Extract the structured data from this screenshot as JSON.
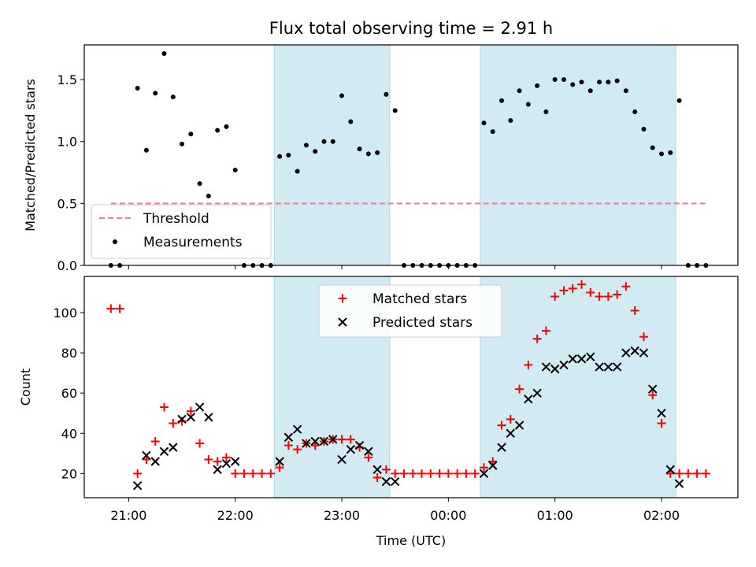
{
  "title": "Flux total observing time = 2.91 h",
  "shading_color": "#add8e6",
  "chart_data": [
    {
      "type": "scatter",
      "panel": "top",
      "ylabel": "Matched/Predicted stars",
      "ylim": [
        0,
        1.78
      ],
      "yticks": [
        0.0,
        0.5,
        1.0,
        1.5
      ],
      "ytick_labels": [
        "0.0",
        "0.5",
        "1.0",
        "1.5"
      ],
      "threshold": {
        "label": "Threshold",
        "value": 0.5,
        "x_range": [
          "20:50",
          "02:25"
        ],
        "color": "#f08080",
        "style": "dashed"
      },
      "legend": {
        "position": "lower-left",
        "entries": [
          "Threshold",
          "Measurements"
        ]
      },
      "series": [
        {
          "name": "Measurements",
          "marker": "dot",
          "color": "#000000",
          "x": [
            "20:50",
            "20:55",
            "21:05",
            "21:10",
            "21:15",
            "21:20",
            "21:25",
            "21:30",
            "21:35",
            "21:40",
            "21:45",
            "21:50",
            "21:55",
            "22:00",
            "22:05",
            "22:10",
            "22:15",
            "22:20",
            "22:25",
            "22:30",
            "22:35",
            "22:40",
            "22:45",
            "22:50",
            "22:55",
            "23:00",
            "23:05",
            "23:10",
            "23:15",
            "23:20",
            "23:25",
            "23:30",
            "23:35",
            "23:40",
            "23:45",
            "23:50",
            "23:55",
            "00:00",
            "00:05",
            "00:10",
            "00:15",
            "00:20",
            "00:25",
            "00:30",
            "00:35",
            "00:40",
            "00:45",
            "00:50",
            "00:55",
            "01:00",
            "01:05",
            "01:10",
            "01:15",
            "01:20",
            "01:25",
            "01:30",
            "01:35",
            "01:40",
            "01:45",
            "01:50",
            "01:55",
            "02:00",
            "02:05",
            "02:10",
            "02:15",
            "02:20",
            "02:25"
          ],
          "y": [
            0,
            0,
            1.43,
            0.93,
            1.39,
            1.71,
            1.36,
            0.98,
            1.06,
            0.66,
            0.56,
            1.09,
            1.12,
            0.77,
            0,
            0,
            0,
            0,
            0.88,
            0.89,
            0.76,
            0.97,
            0.92,
            1.0,
            1.0,
            1.37,
            1.16,
            0.94,
            0.9,
            0.91,
            1.38,
            1.25,
            0,
            0,
            0,
            0,
            0,
            0,
            0,
            0,
            0,
            1.15,
            1.08,
            1.33,
            1.17,
            1.41,
            1.3,
            1.45,
            1.24,
            1.5,
            1.5,
            1.46,
            1.48,
            1.41,
            1.48,
            1.48,
            1.49,
            1.41,
            1.24,
            1.1,
            0.95,
            0.9,
            0.91,
            1.33,
            0,
            0,
            0
          ]
        }
      ]
    },
    {
      "type": "scatter",
      "panel": "bottom",
      "xlabel": "Time (UTC)",
      "ylabel": "Count",
      "ylim": [
        8,
        118
      ],
      "yticks": [
        20,
        40,
        60,
        80,
        100
      ],
      "ytick_labels": [
        "20",
        "40",
        "60",
        "80",
        "100"
      ],
      "xticks": [
        "21:00",
        "22:00",
        "23:00",
        "00:00",
        "01:00",
        "02:00"
      ],
      "legend": {
        "position": "upper-center",
        "entries": [
          "Matched stars",
          "Predicted stars"
        ]
      },
      "series": [
        {
          "name": "Matched stars",
          "marker": "plus",
          "color": "#ff0000",
          "x": [
            "20:50",
            "20:55",
            "21:05",
            "21:10",
            "21:15",
            "21:20",
            "21:25",
            "21:30",
            "21:35",
            "21:40",
            "21:45",
            "21:50",
            "21:55",
            "22:00",
            "22:05",
            "22:10",
            "22:15",
            "22:20",
            "22:25",
            "22:30",
            "22:35",
            "22:40",
            "22:45",
            "22:50",
            "22:55",
            "23:00",
            "23:05",
            "23:10",
            "23:15",
            "23:20",
            "23:25",
            "23:30",
            "23:35",
            "23:40",
            "23:45",
            "23:50",
            "23:55",
            "00:00",
            "00:05",
            "00:10",
            "00:15",
            "00:20",
            "00:25",
            "00:30",
            "00:35",
            "00:40",
            "00:45",
            "00:50",
            "00:55",
            "01:00",
            "01:05",
            "01:10",
            "01:15",
            "01:20",
            "01:25",
            "01:30",
            "01:35",
            "01:40",
            "01:45",
            "01:50",
            "01:55",
            "02:00",
            "02:05",
            "02:10",
            "02:15",
            "02:20",
            "02:25"
          ],
          "y": [
            102,
            102,
            20,
            27,
            36,
            53,
            45,
            46,
            51,
            35,
            27,
            26,
            28,
            20,
            20,
            20,
            20,
            20,
            23,
            34,
            32,
            35,
            34,
            36,
            37,
            37,
            37,
            33,
            28,
            18,
            22,
            20,
            20,
            20,
            20,
            20,
            20,
            20,
            20,
            20,
            20,
            23,
            26,
            44,
            47,
            62,
            74,
            87,
            91,
            108,
            111,
            112,
            114,
            110,
            108,
            108,
            109,
            113,
            101,
            88,
            59,
            45,
            20,
            20,
            20,
            20,
            20
          ]
        },
        {
          "name": "Predicted stars",
          "marker": "x",
          "color": "#000000",
          "x": [
            "21:05",
            "21:10",
            "21:15",
            "21:20",
            "21:25",
            "21:30",
            "21:35",
            "21:40",
            "21:45",
            "21:50",
            "21:55",
            "22:00",
            "22:25",
            "22:30",
            "22:35",
            "22:40",
            "22:45",
            "22:50",
            "22:55",
            "23:00",
            "23:05",
            "23:10",
            "23:15",
            "23:20",
            "23:25",
            "23:30",
            "00:20",
            "00:25",
            "00:30",
            "00:35",
            "00:40",
            "00:45",
            "00:50",
            "00:55",
            "01:00",
            "01:05",
            "01:10",
            "01:15",
            "01:20",
            "01:25",
            "01:30",
            "01:35",
            "01:40",
            "01:45",
            "01:50",
            "01:55",
            "02:00",
            "02:05",
            "02:10"
          ],
          "y": [
            14,
            29,
            26,
            31,
            33,
            47,
            48,
            53,
            48,
            22,
            25,
            26,
            26,
            38,
            42,
            35,
            36,
            36,
            37,
            27,
            32,
            34,
            31,
            22,
            16,
            16,
            20,
            24,
            33,
            40,
            44,
            57,
            60,
            73,
            72,
            74,
            77,
            77,
            78,
            73,
            73,
            73,
            80,
            81,
            80,
            62,
            50,
            22,
            15
          ]
        }
      ]
    }
  ],
  "shaded_intervals": [
    [
      "22:22",
      "23:27"
    ],
    [
      "00:18",
      "02:08"
    ]
  ],
  "x_axis": {
    "min": "20:35",
    "max": "02:43"
  }
}
